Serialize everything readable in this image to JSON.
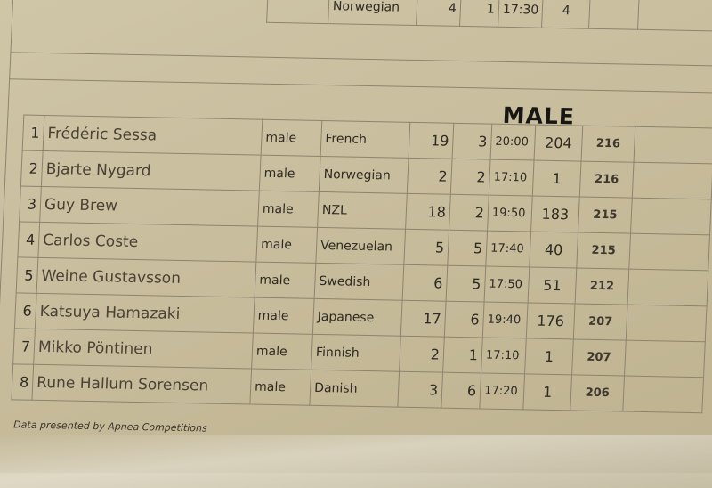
{
  "previous_row": {
    "nationality": "Norwegian",
    "c1": "4",
    "c2": "1",
    "time": "17:30",
    "c3": "4"
  },
  "section_title": "MALE",
  "rows": [
    {
      "rank": "1",
      "name": "Frédéric Sessa",
      "gender": "male",
      "nationality": "French",
      "c1": "19",
      "c2": "3",
      "time": "20:00",
      "c3": "204",
      "c4": "216"
    },
    {
      "rank": "2",
      "name": "Bjarte Nygard",
      "gender": "male",
      "nationality": "Norwegian",
      "c1": "2",
      "c2": "2",
      "time": "17:10",
      "c3": "1",
      "c4": "216"
    },
    {
      "rank": "3",
      "name": "Guy Brew",
      "gender": "male",
      "nationality": "NZL",
      "c1": "18",
      "c2": "2",
      "time": "19:50",
      "c3": "183",
      "c4": "215"
    },
    {
      "rank": "4",
      "name": "Carlos Coste",
      "gender": "male",
      "nationality": "Venezuelan",
      "c1": "5",
      "c2": "5",
      "time": "17:40",
      "c3": "40",
      "c4": "215"
    },
    {
      "rank": "5",
      "name": "Weine Gustavsson",
      "gender": "male",
      "nationality": "Swedish",
      "c1": "6",
      "c2": "5",
      "time": "17:50",
      "c3": "51",
      "c4": "212"
    },
    {
      "rank": "6",
      "name": "Katsuya Hamazaki",
      "gender": "male",
      "nationality": "Japanese",
      "c1": "17",
      "c2": "6",
      "time": "19:40",
      "c3": "176",
      "c4": "207"
    },
    {
      "rank": "7",
      "name": "Mikko Pöntinen",
      "gender": "male",
      "nationality": "Finnish",
      "c1": "2",
      "c2": "1",
      "time": "17:10",
      "c3": "1",
      "c4": "207"
    },
    {
      "rank": "8",
      "name": "Rune Hallum Sorensen",
      "gender": "male",
      "nationality": "Danish",
      "c1": "3",
      "c2": "6",
      "time": "17:20",
      "c3": "1",
      "c4": "206"
    }
  ],
  "footer": "Data presented by Apnea Competitions"
}
